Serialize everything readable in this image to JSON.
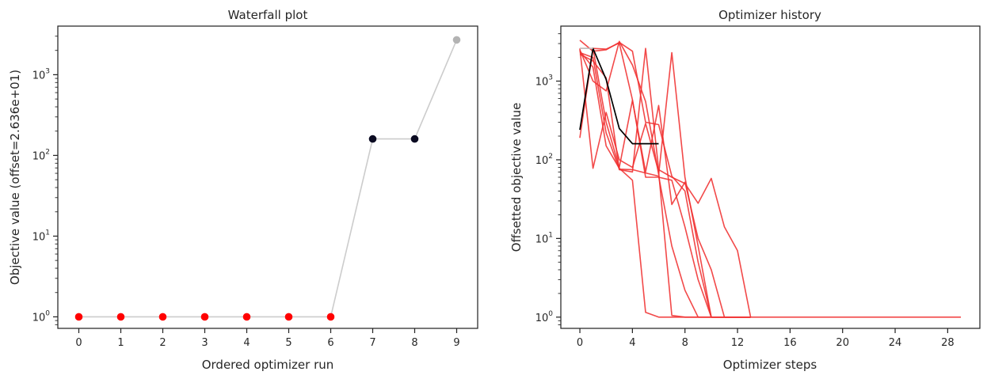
{
  "chart_data": [
    {
      "type": "scatter",
      "title": "Waterfall plot",
      "xlabel": "Ordered optimizer run",
      "ylabel": "Objective value (offset=2.636e+01)",
      "yscale": "log",
      "xlim": [
        -0.5,
        9.5
      ],
      "ylim": [
        0.72,
        4000
      ],
      "xticks": [
        "0",
        "1",
        "2",
        "3",
        "4",
        "5",
        "6",
        "7",
        "8",
        "9"
      ],
      "yticks": [
        {
          "value": 1,
          "base": "10",
          "exp": "0"
        },
        {
          "value": 10,
          "base": "10",
          "exp": "1"
        },
        {
          "value": 100,
          "base": "10",
          "exp": "2"
        },
        {
          "value": 1000,
          "base": "10",
          "exp": "3"
        }
      ],
      "line_color": "#cccccc",
      "points": [
        {
          "x": 0,
          "y": 1,
          "color": "#ff0000"
        },
        {
          "x": 1,
          "y": 1,
          "color": "#ff0000"
        },
        {
          "x": 2,
          "y": 1,
          "color": "#ff0000"
        },
        {
          "x": 3,
          "y": 1,
          "color": "#ff0000"
        },
        {
          "x": 4,
          "y": 1,
          "color": "#ff0000"
        },
        {
          "x": 5,
          "y": 1,
          "color": "#ff0000"
        },
        {
          "x": 6,
          "y": 1,
          "color": "#ff0000"
        },
        {
          "x": 7,
          "y": 160,
          "color": "#0b0b22"
        },
        {
          "x": 8,
          "y": 160,
          "color": "#0b0b22"
        },
        {
          "x": 9,
          "y": 2700,
          "color": "#b3b3b3"
        }
      ]
    },
    {
      "type": "line",
      "title": "Optimizer history",
      "xlabel": "Optimizer steps",
      "ylabel": "Offsetted objective value",
      "yscale": "log",
      "xlim": [
        -1.45,
        30.45
      ],
      "ylim": [
        0.72,
        5000
      ],
      "xticks": [
        "0",
        "4",
        "8",
        "12",
        "16",
        "20",
        "24",
        "28"
      ],
      "yticks": [
        {
          "value": 1,
          "base": "10",
          "exp": "0"
        },
        {
          "value": 10,
          "base": "10",
          "exp": "1"
        },
        {
          "value": 100,
          "base": "10",
          "exp": "2"
        },
        {
          "value": 1000,
          "base": "10",
          "exp": "3"
        }
      ],
      "series": [
        {
          "color": "#f03030",
          "x": [
            0,
            1,
            2,
            3,
            4,
            5,
            6,
            7,
            8,
            9,
            10,
            11,
            12,
            13,
            29
          ],
          "y": [
            3300,
            2400,
            2500,
            3100,
            2400,
            300,
            280,
            62,
            40,
            5,
            1.0,
            1.0,
            1.0,
            1.0,
            1.0
          ]
        },
        {
          "color": "#f03030",
          "x": [
            0,
            1,
            2,
            3,
            4,
            5,
            6,
            7,
            8,
            9,
            10,
            11,
            12,
            13
          ],
          "y": [
            2500,
            1000,
            750,
            3200,
            1600,
            550,
            65,
            2300,
            60,
            8,
            1.0,
            1.0,
            1.0,
            1.0
          ]
        },
        {
          "color": "#f03030",
          "x": [
            0,
            1,
            2,
            3,
            4,
            5,
            6,
            7,
            8,
            9,
            10,
            11,
            12,
            13
          ],
          "y": [
            2200,
            1800,
            1100,
            75,
            70,
            2600,
            75,
            60,
            50,
            28,
            58,
            14,
            7,
            1.0
          ]
        },
        {
          "color": "#f03030",
          "x": [
            0,
            1,
            2,
            3,
            4,
            5,
            6,
            7,
            8,
            9,
            10,
            11,
            12,
            13
          ],
          "y": [
            190,
            2600,
            300,
            80,
            570,
            70,
            490,
            27,
            52,
            10,
            4,
            1.0,
            1.0,
            1.0
          ]
        },
        {
          "color": "#f03030",
          "x": [
            0,
            1,
            2,
            3,
            4,
            5,
            6,
            7,
            8,
            9,
            10,
            11,
            12,
            13
          ],
          "y": [
            2400,
            1500,
            150,
            78,
            55,
            1.15,
            1.0,
            1.0,
            1.0,
            1.0,
            1.0,
            1.0,
            1.0,
            1.0
          ]
        },
        {
          "color": "#f03030",
          "x": [
            0,
            1,
            2,
            3,
            4,
            5,
            6,
            7,
            8,
            9,
            10,
            11,
            12,
            13
          ],
          "y": [
            2600,
            78,
            400,
            100,
            80,
            290,
            70,
            1.05,
            1.0,
            1.0,
            1.0,
            1.0,
            1.0,
            1.0
          ]
        },
        {
          "color": "#f03030",
          "x": [
            0,
            1,
            2,
            3,
            4,
            5,
            6,
            7,
            8,
            9,
            10,
            11,
            12,
            13
          ],
          "y": [
            2300,
            2000,
            220,
            76,
            75,
            68,
            62,
            8,
            2.2,
            1.0,
            1.0,
            1.0,
            1.0,
            1.0
          ]
        },
        {
          "color": "#f03030",
          "x": [
            0,
            1,
            2,
            3,
            4,
            5,
            6,
            7,
            8,
            9,
            10,
            11,
            12,
            13
          ],
          "y": [
            2600,
            2600,
            2550,
            3050,
            580,
            60,
            60,
            55,
            14,
            3,
            1.0,
            1.0,
            1.0,
            1.0
          ]
        },
        {
          "color": "#000000",
          "x": [
            0,
            1,
            2,
            3,
            4,
            5,
            6
          ],
          "y": [
            240,
            2600,
            1050,
            250,
            160,
            160,
            160
          ]
        },
        {
          "color": "#c0c0c0",
          "x": [
            0,
            1
          ],
          "y": [
            2600,
            2600
          ]
        }
      ]
    }
  ]
}
